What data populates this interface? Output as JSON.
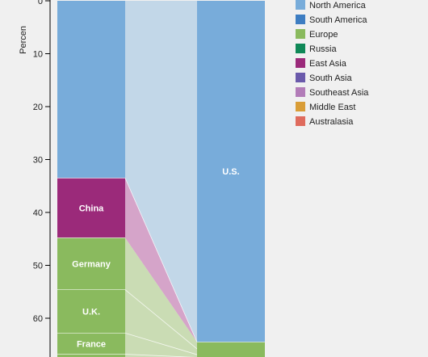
{
  "chart_data": {
    "type": "stacked-bar-flow",
    "ylabel": "Percen",
    "yticks": [
      0,
      10,
      20,
      30,
      40,
      50,
      60
    ],
    "ylim": [
      0,
      67.5
    ],
    "y_inverted": true,
    "bars": [
      {
        "segments": [
          {
            "label": "",
            "region": "North America",
            "start": 0,
            "end": 33.5
          },
          {
            "label": "China",
            "region": "East Asia",
            "start": 33.5,
            "end": 44.8
          },
          {
            "label": "Germany",
            "region": "Europe",
            "start": 44.8,
            "end": 54.6
          },
          {
            "label": "U.K.",
            "region": "Europe",
            "start": 54.6,
            "end": 62.8
          },
          {
            "label": "France",
            "region": "Europe",
            "start": 62.8,
            "end": 66.8
          },
          {
            "label": "",
            "region": "Europe",
            "start": 66.8,
            "end": 67.5
          }
        ]
      },
      {
        "segments": [
          {
            "label": "U.S.",
            "region": "North America",
            "start": 0,
            "end": 64.5
          },
          {
            "label": "",
            "region": "Europe",
            "start": 64.5,
            "end": 67.5
          }
        ]
      }
    ],
    "flows": [
      {
        "region": "North America",
        "from": [
          0,
          33.5
        ],
        "to": [
          0,
          64.5
        ]
      },
      {
        "region": "East Asia",
        "from": [
          33.5,
          44.8
        ],
        "to": [
          64.5,
          64.5
        ]
      },
      {
        "region": "Europe",
        "from": [
          44.8,
          67.5
        ],
        "to": [
          64.5,
          67.5
        ]
      }
    ],
    "flow_dividers": [
      54.6,
      62.8,
      66.8
    ],
    "legend_position": "top-right",
    "legend": [
      {
        "name": "North America",
        "color": "#78acda"
      },
      {
        "name": "South America",
        "color": "#3d7dc2"
      },
      {
        "name": "Europe",
        "color": "#8aba5e"
      },
      {
        "name": "Russia",
        "color": "#0f8857"
      },
      {
        "name": "East Asia",
        "color": "#9b2a7a"
      },
      {
        "name": "South Asia",
        "color": "#6a5aab"
      },
      {
        "name": "Southeast Asia",
        "color": "#b27cb8"
      },
      {
        "name": "Middle East",
        "color": "#d99d37"
      },
      {
        "name": "Australasia",
        "color": "#df6b5d"
      }
    ],
    "flow_colors": {
      "North America": "#c2d7e8",
      "East Asia": "#d5a4c9",
      "Europe": "#cadcb4"
    }
  }
}
